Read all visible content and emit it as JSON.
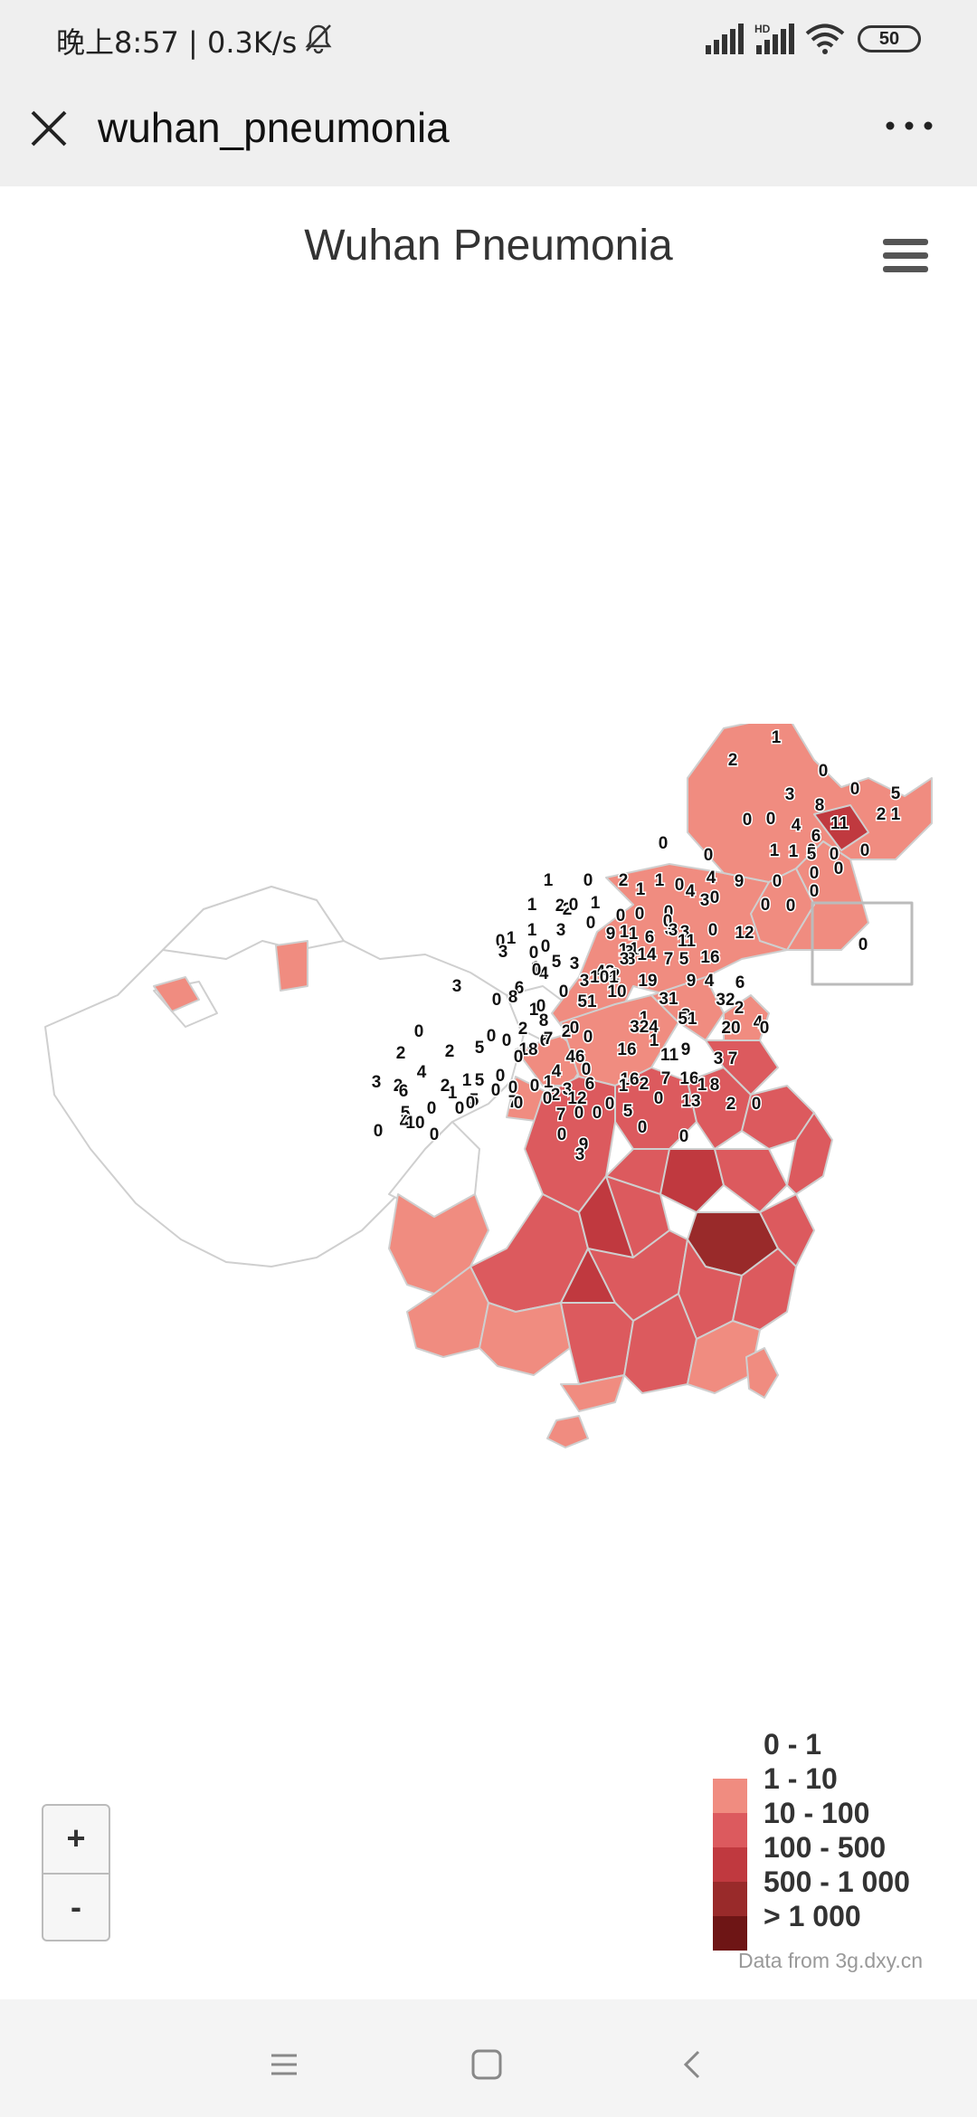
{
  "status_bar": {
    "text": "晚上8:57 | 0.3K/s",
    "network_badge": "HD",
    "battery": "50",
    "icons": [
      "mute-icon",
      "signal-icon",
      "signal-hd-icon",
      "wifi-icon",
      "battery-icon"
    ]
  },
  "app_bar": {
    "title": "wuhan_pneumonia",
    "close_icon": "close-icon",
    "more_icon": "more-horizontal-icon"
  },
  "chart": {
    "title": "Wuhan Pneumonia",
    "menu_icon": "hamburger-menu-icon",
    "credit": "Data from 3g.dxy.cn"
  },
  "chart_data": {
    "type": "choropleth-map",
    "region": "China",
    "legend": [
      {
        "label": "0 - 1",
        "color": "#ffffff"
      },
      {
        "label": "1 - 10",
        "color": "#f08c80"
      },
      {
        "label": "10 - 100",
        "color": "#dc5a5e"
      },
      {
        "label": "100 - 500",
        "color": "#c0393f"
      },
      {
        "label": "500 - 1 000",
        "color": "#992a2a"
      },
      {
        "label": "> 1 000",
        "color": "#6e1515"
      }
    ],
    "region_labels": [
      "1",
      "2",
      "0",
      "0",
      "5",
      "3",
      "8",
      "11",
      "2",
      "1",
      "0",
      "4",
      "1",
      "6",
      "0",
      "1",
      "0",
      "0",
      "0",
      "0",
      "0",
      "0",
      "0",
      "0",
      "1",
      "0",
      "2",
      "2",
      "1",
      "3",
      "0",
      "4",
      "4",
      "9",
      "0",
      "5",
      "1",
      "1",
      "0",
      "3",
      "0",
      "0",
      "0",
      "2",
      "1",
      "0",
      "0",
      "0",
      "1",
      "6",
      "3",
      "1",
      "0",
      "3",
      "3",
      "1",
      "9",
      "3",
      "8",
      "1",
      "11",
      "0",
      "12",
      "0",
      "1",
      "1",
      "3",
      "0",
      "3",
      "14",
      "7",
      "5",
      "16",
      "0",
      "0",
      "5",
      "3",
      "1",
      "4",
      "42",
      "2",
      "19",
      "9",
      "4",
      "6",
      "3",
      "0",
      "10",
      "31",
      "6",
      "8",
      "0",
      "1",
      "3",
      "32",
      "2",
      "4",
      "8",
      "9",
      "6",
      "0",
      "0",
      "0",
      "0",
      "3",
      "2",
      "2",
      "7",
      "1",
      "0",
      "51",
      "101",
      "324",
      "1",
      "51",
      "20",
      "0",
      "2",
      "2",
      "5",
      "0",
      "18",
      "46",
      "16",
      "11",
      "9",
      "3",
      "7",
      "0",
      "0",
      "3",
      "2",
      "1",
      "1",
      "5",
      "5",
      "0",
      "0",
      "4",
      "0",
      "6",
      "16",
      "7",
      "16",
      "1",
      "13",
      "8",
      "2",
      "0",
      "1",
      "2",
      "0",
      "2",
      "3",
      "4",
      "6",
      "5",
      "4",
      "0",
      "10",
      "0",
      "7",
      "0",
      "12",
      "1",
      "7",
      "0",
      "9",
      "3",
      "0",
      "5",
      "2",
      "0",
      "0",
      "0",
      "0",
      "0",
      "0",
      "0",
      "0",
      "0",
      "0"
    ],
    "inset_label": "0"
  },
  "zoom": {
    "in": "+",
    "out": "-"
  },
  "nav_bar": {
    "icons": [
      "menu-icon",
      "home-icon",
      "back-icon"
    ]
  }
}
